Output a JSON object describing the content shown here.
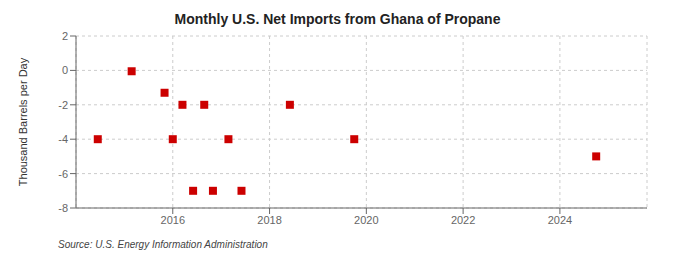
{
  "chart_data": {
    "type": "scatter",
    "title": "Monthly U.S. Net Imports from Ghana of Propane",
    "ylabel": "Thousand Barrels per Day",
    "annotations": [
      "Source: U.S. Energy Information Administration"
    ],
    "x": [
      2014.45,
      2015.15,
      2015.83,
      2016.0,
      2016.2,
      2016.42,
      2016.65,
      2016.83,
      2017.15,
      2017.42,
      2018.42,
      2019.75,
      2024.75
    ],
    "values": [
      -4.0,
      -0.05,
      -1.3,
      -4.0,
      -2.0,
      -7.0,
      -2.0,
      -7.0,
      -4.0,
      -7.0,
      -2.0,
      -4.0,
      -5.0
    ],
    "color": "#cc0000",
    "marker": "square",
    "xlim": [
      2014.0,
      2025.8
    ],
    "xticks": [
      2016,
      2018,
      2020,
      2022,
      2024
    ],
    "ylim": [
      -8,
      2
    ],
    "yticks": [
      -8,
      -6,
      -4,
      -2,
      0,
      2
    ],
    "grid": true
  }
}
